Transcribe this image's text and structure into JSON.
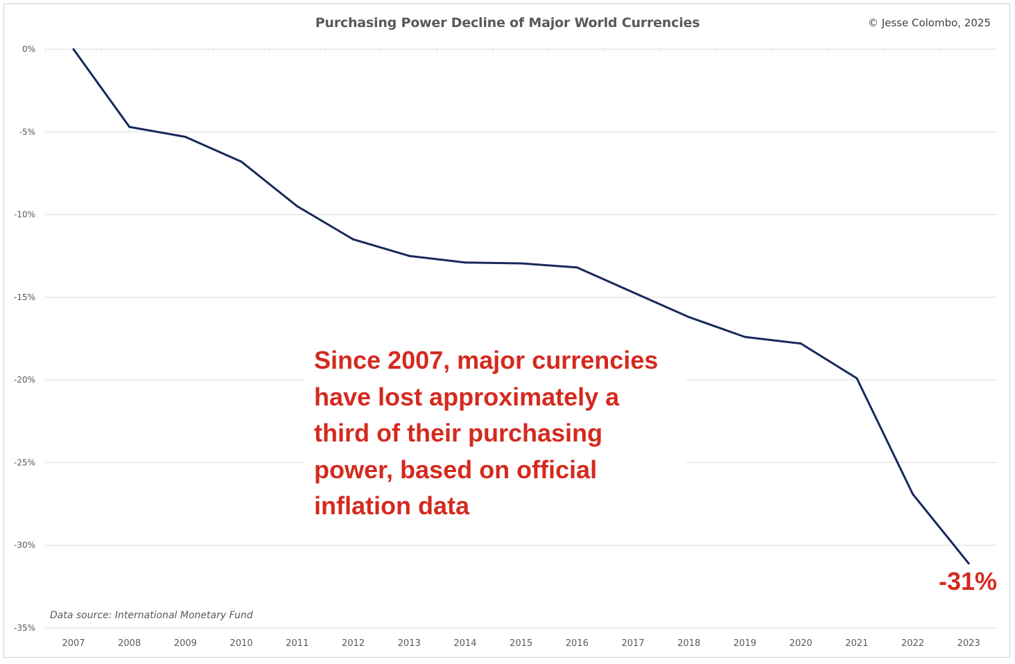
{
  "header": {
    "title": "Purchasing Power Decline of Major World Currencies",
    "copyright": "© Jesse Colombo, 2025"
  },
  "footer": {
    "source": "Data source: International Monetary Fund"
  },
  "annotation": {
    "lines": [
      "Since 2007, major currencies",
      "have lost approximately a",
      "third of their purchasing",
      "power, based on official",
      "inflation data"
    ],
    "end_label": "-31%"
  },
  "colors": {
    "line": "#17295a",
    "annotation": "#d42a1e",
    "grid": "#d9d9d9",
    "text": "#595959"
  },
  "chart_data": {
    "type": "line",
    "title": "Purchasing Power Decline of Major World Currencies",
    "categories": [
      "2007",
      "2008",
      "2009",
      "2010",
      "2011",
      "2012",
      "2013",
      "2014",
      "2015",
      "2016",
      "2017",
      "2018",
      "2019",
      "2020",
      "2021",
      "2022",
      "2023"
    ],
    "series": [
      {
        "values": [
          0,
          -4.7,
          -5.3,
          -6.8,
          -9.5,
          -11.5,
          -12.5,
          -12.9,
          -12.95,
          -13.2,
          -14.7,
          -16.2,
          -17.4,
          -17.8,
          -19.9,
          -26.9,
          -31.1
        ]
      }
    ],
    "ylim": [
      -35,
      0
    ],
    "yticks": [
      0,
      -5,
      -10,
      -15,
      -20,
      -25,
      -30,
      -35
    ],
    "ytick_labels": [
      "0%",
      "-5%",
      "-10%",
      "-15%",
      "-20%",
      "-25%",
      "-30%",
      "-35%"
    ],
    "xlabel": "",
    "ylabel": "",
    "grid": true,
    "legend": "none"
  }
}
